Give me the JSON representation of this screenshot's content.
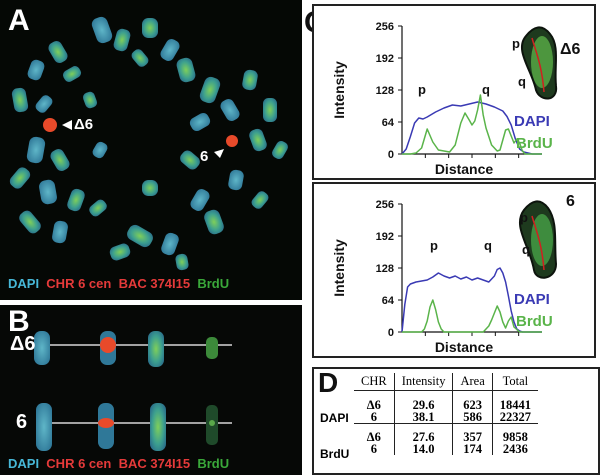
{
  "panel_a": {
    "letter": "A",
    "label_delta6": "Δ6",
    "label_6": "6",
    "legend": {
      "dapi": "DAPI",
      "chr6cen": "CHR 6 cen",
      "bac": "BAC 374I15",
      "brdu": "BrdU"
    }
  },
  "panel_b": {
    "letter": "B",
    "row1_label": "Δ6",
    "row2_label": "6",
    "legend": {
      "dapi": "DAPI",
      "chr6cen": "CHR 6 cen",
      "bac": "BAC 374I15",
      "brdu": "BrdU"
    }
  },
  "panel_c": {
    "letter": "C",
    "colors": {
      "dapi": "#3a3ab4",
      "brdu": "#5ab44a"
    },
    "chart_data": [
      {
        "type": "line",
        "chromosome": "Δ6",
        "ylabel": "Intensity",
        "xlabel": "Distance",
        "yticks": [
          "256",
          "192",
          "128",
          "64",
          "0"
        ],
        "ylim": [
          0,
          256
        ],
        "xlim": [
          0,
          100
        ],
        "arm_labels": [
          "p",
          "q"
        ],
        "inset_labels": [
          "p",
          "q"
        ],
        "legend": [
          "DAPI",
          "BrdU"
        ],
        "series": [
          {
            "name": "DAPI",
            "x": [
              0,
              3,
              6,
              9,
              12,
              15,
              18,
              24,
              30,
              36,
              42,
              48,
              54,
              60,
              66,
              72,
              75,
              78,
              81,
              84,
              87,
              90,
              93,
              96,
              100
            ],
            "y": [
              0,
              10,
              35,
              62,
              72,
              70,
              74,
              84,
              92,
              98,
              96,
              100,
              104,
              100,
              94,
              86,
              75,
              58,
              30,
              10,
              4,
              2,
              0,
              0,
              0
            ]
          },
          {
            "name": "BrdU",
            "x": [
              0,
              6,
              10,
              14,
              18,
              22,
              26,
              30,
              34,
              38,
              42,
              45,
              48,
              50,
              52,
              54,
              56,
              58,
              60,
              64,
              68,
              70,
              72,
              74,
              76,
              78,
              80,
              82,
              84,
              86,
              88,
              92,
              100
            ],
            "y": [
              0,
              0,
              2,
              12,
              50,
              24,
              8,
              6,
              4,
              18,
              62,
              82,
              68,
              58,
              66,
              88,
              118,
              78,
              52,
              18,
              6,
              8,
              28,
              48,
              50,
              36,
              22,
              30,
              22,
              6,
              0,
              0,
              0
            ]
          }
        ]
      },
      {
        "type": "line",
        "chromosome": "6",
        "ylabel": "Intensity",
        "xlabel": "Distance",
        "yticks": [
          "256",
          "192",
          "128",
          "64",
          "0"
        ],
        "ylim": [
          0,
          256
        ],
        "xlim": [
          0,
          100
        ],
        "arm_labels": [
          "p",
          "q"
        ],
        "inset_labels": [
          "p",
          "q"
        ],
        "legend": [
          "DAPI",
          "BrdU"
        ],
        "series": [
          {
            "name": "DAPI",
            "x": [
              0,
              2,
              4,
              6,
              10,
              14,
              18,
              22,
              26,
              30,
              34,
              38,
              42,
              46,
              50,
              54,
              58,
              62,
              66,
              68,
              70,
              72,
              74,
              76,
              78,
              80,
              82,
              84,
              86,
              100
            ],
            "y": [
              0,
              55,
              90,
              96,
              100,
              102,
              104,
              110,
              118,
              112,
              108,
              112,
              106,
              110,
              104,
              108,
              104,
              100,
              112,
              125,
              128,
              118,
              100,
              72,
              42,
              20,
              6,
              2,
              0,
              0
            ]
          },
          {
            "name": "BrdU",
            "x": [
              0,
              10,
              14,
              16,
              18,
              20,
              22,
              24,
              26,
              28,
              30,
              34,
              38,
              42,
              46,
              52,
              58,
              62,
              64,
              66,
              68,
              70,
              72,
              74,
              76,
              78,
              80,
              84,
              100
            ],
            "y": [
              0,
              0,
              0,
              6,
              22,
              50,
              64,
              45,
              20,
              6,
              0,
              0,
              0,
              0,
              0,
              0,
              0,
              12,
              24,
              38,
              52,
              40,
              20,
              8,
              22,
              30,
              10,
              0,
              0
            ]
          }
        ]
      }
    ]
  },
  "panel_d": {
    "letter": "D",
    "chart_data": {
      "type": "table",
      "columns": [
        "CHR",
        "Intensity",
        "Area",
        "Total"
      ],
      "groups": [
        {
          "label": "DAPI",
          "rows": [
            {
              "chr": "Δ6",
              "intensity": "29.6",
              "area": "623",
              "total": "18441"
            },
            {
              "chr": "6",
              "intensity": "38.1",
              "area": "586",
              "total": "22327"
            }
          ]
        },
        {
          "label": "BrdU",
          "rows": [
            {
              "chr": "Δ6",
              "intensity": "27.6",
              "area": "357",
              "total": "9858"
            },
            {
              "chr": "6",
              "intensity": "14.0",
              "area": "174",
              "total": "2436"
            }
          ]
        }
      ]
    }
  }
}
